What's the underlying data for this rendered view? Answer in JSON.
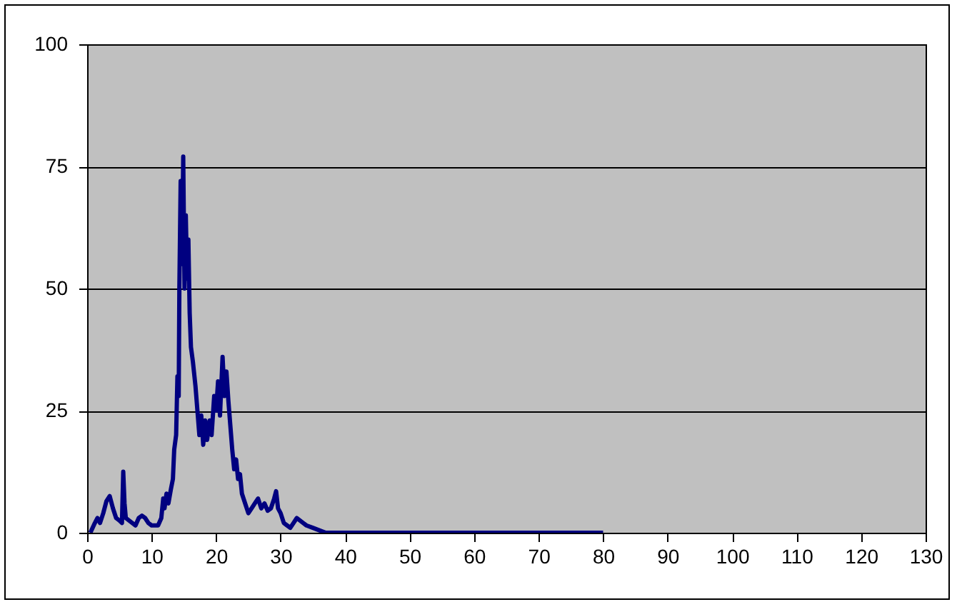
{
  "chart_data": {
    "type": "line",
    "xlim": [
      0,
      130
    ],
    "xticks": [
      0,
      10,
      20,
      30,
      40,
      50,
      60,
      70,
      80,
      90,
      100,
      110,
      120,
      130
    ],
    "ylim": [
      0,
      100
    ],
    "yticks": [
      0,
      25,
      50,
      75,
      100
    ],
    "grid": "y",
    "marker": "none",
    "line_style": "solid",
    "series": [
      {
        "color": "#000080",
        "x": [
          0.5,
          1.2,
          1.6,
          2,
          2.5,
          3,
          3.5,
          4,
          4.5,
          5,
          5.4,
          5.6,
          5.8,
          6,
          6.5,
          7,
          7.5,
          8,
          8.5,
          9,
          9.5,
          10,
          11,
          11.5,
          11.8,
          12,
          12.3,
          12.6,
          13,
          13.3,
          13.5,
          13.8,
          14,
          14.2,
          14.3,
          14.5,
          14.7,
          14.9,
          15.1,
          15.3,
          15.5,
          15.7,
          15.9,
          16.1,
          16.4,
          16.8,
          17.1,
          17.4,
          17.7,
          18,
          18.3,
          18.6,
          19,
          19.3,
          19.7,
          20,
          20.3,
          20.6,
          21,
          21.3,
          21.6,
          21.9,
          22.2,
          22.5,
          22.8,
          23.1,
          23.4,
          23.7,
          24,
          24.5,
          25,
          25.5,
          26,
          26.5,
          27,
          27.5,
          28,
          28.5,
          29,
          29.3,
          29.6,
          30,
          30.5,
          31,
          31.5,
          32,
          32.5,
          33,
          33.5,
          34,
          35,
          36,
          37,
          40,
          50,
          60,
          70,
          80
        ],
        "values": [
          0,
          2,
          3,
          2,
          4,
          6.5,
          7.5,
          5,
          3,
          2.5,
          2,
          12.5,
          6,
          3,
          2.5,
          2,
          1.5,
          3,
          3.5,
          3,
          2,
          1.5,
          1.5,
          3,
          7,
          5,
          8,
          6,
          9,
          11,
          17,
          20,
          32,
          28,
          50,
          72,
          55,
          77,
          50,
          65,
          52,
          60,
          45,
          38,
          35,
          30,
          25,
          20,
          24,
          18,
          23,
          19,
          23,
          20,
          28,
          25,
          31,
          24,
          36,
          28,
          33,
          27,
          22,
          17,
          13,
          15,
          11,
          12,
          8,
          6,
          4,
          5,
          6,
          7,
          5,
          6,
          4.5,
          5,
          7,
          8.5,
          5,
          4,
          2,
          1.5,
          1,
          2,
          3,
          2.5,
          2,
          1.5,
          1,
          0.5,
          0,
          0,
          0,
          0,
          0,
          0
        ]
      }
    ]
  }
}
